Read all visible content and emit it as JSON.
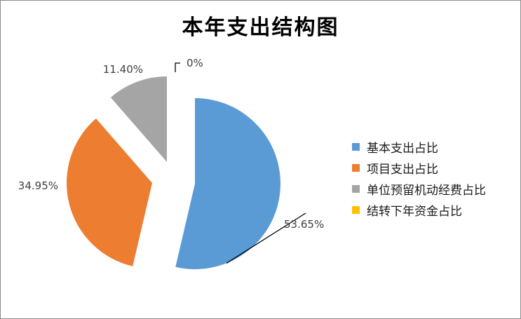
{
  "chart_data": {
    "type": "pie",
    "title": "本年支出结构图",
    "categories": [
      "基本支出占比",
      "项目支出占比",
      "单位预留机动经费占比",
      "结转下年资金占比"
    ],
    "values": [
      53.65,
      34.95,
      11.4,
      0
    ],
    "labels": [
      "53.65%",
      "34.95%",
      "11.40%",
      "0%"
    ],
    "colors": [
      "#5b9bd5",
      "#ed7d31",
      "#a5a5a5",
      "#ffc000"
    ],
    "exploded": true,
    "legend_position": "right"
  }
}
